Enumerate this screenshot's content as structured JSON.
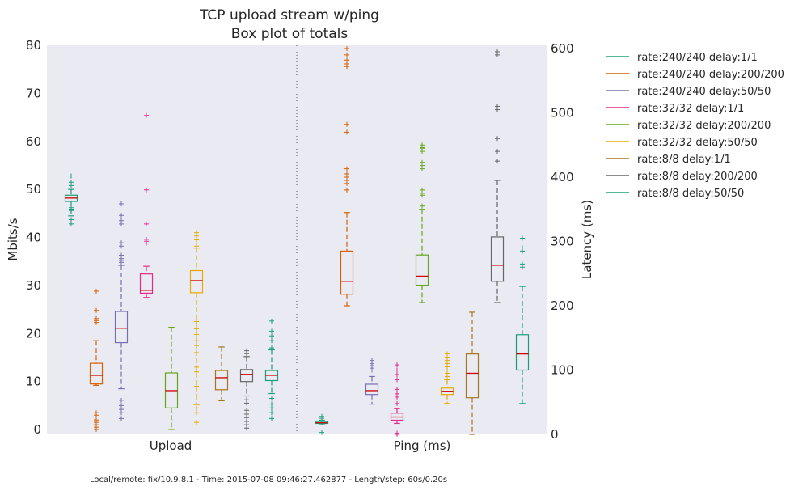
{
  "chart_data": {
    "type": "box",
    "title": "TCP upload stream w/ping",
    "subtitle": "Box plot of totals",
    "categories": [
      "Upload",
      "Ping (ms)"
    ],
    "y_left": {
      "label": "Mbits/s",
      "lim": [
        -1,
        80
      ],
      "ticks": [
        0,
        10,
        20,
        30,
        40,
        50,
        60,
        70,
        80
      ]
    },
    "y_right": {
      "label": "Latency (ms)",
      "lim": [
        0,
        605
      ],
      "ticks": [
        0,
        100,
        200,
        300,
        400,
        500,
        600
      ]
    },
    "grid": false,
    "legend_position": "right, outside",
    "series": [
      {
        "name": "rate:240/240 delay:1/1",
        "color": "#1b9e77",
        "upload": {
          "whislo": 44.5,
          "q1": 47.5,
          "med": 48.2,
          "q3": 48.8,
          "whishi": 50.0,
          "fliers": [
            42.8,
            43.7,
            45.6,
            45.9,
            46.2,
            50.8,
            51.5,
            52.8
          ]
        },
        "ping": {
          "whislo": 15,
          "q1": 17,
          "med": 18,
          "q3": 20,
          "whishi": 22,
          "fliers": [
            3,
            25,
            28
          ]
        }
      },
      {
        "name": "rate:240/240 delay:200/200",
        "color": "#d95f02",
        "upload": {
          "whislo": 9.2,
          "q1": 9.5,
          "med": 11.3,
          "q3": 13.8,
          "whishi": 18.5,
          "fliers": [
            0.0,
            0.5,
            1.0,
            1.5,
            2.0,
            3.0,
            3.5,
            22.3,
            22.7,
            23.1,
            24.8,
            28.8
          ]
        },
        "ping": {
          "whislo": 200,
          "q1": 218,
          "med": 238,
          "q3": 285,
          "whishi": 345,
          "fliers": [
            380,
            390,
            395,
            400,
            405,
            413,
            470,
            482,
            572,
            576,
            582,
            590,
            600
          ]
        }
      },
      {
        "name": "rate:240/240 delay:50/50",
        "color": "#7570b3",
        "upload": {
          "whislo": 8.5,
          "q1": 18.1,
          "med": 21.1,
          "q3": 24.6,
          "whishi": 34.2,
          "fliers": [
            2.3,
            3.5,
            4.2,
            5.0,
            6.1,
            34.8,
            35.2,
            35.6,
            36.3,
            38.2,
            38.9,
            42.8,
            43.5,
            44.6,
            47.0
          ]
        },
        "ping": {
          "whislo": 47,
          "q1": 62,
          "med": 68,
          "q3": 78,
          "whishi": 90,
          "fliers": [
            100,
            103,
            107,
            110,
            115
          ]
        }
      },
      {
        "name": "rate:32/32 delay:1/1",
        "color": "#e7298a",
        "upload": {
          "whislo": 27.5,
          "q1": 28.4,
          "med": 29.0,
          "q3": 32.4,
          "whishi": 34.0,
          "fliers": [
            38.8,
            39.2,
            39.6,
            42.8,
            49.9,
            65.4
          ]
        },
        "ping": {
          "whislo": 17,
          "q1": 22,
          "med": 27,
          "q3": 33,
          "whishi": 40,
          "fliers": [
            0,
            2,
            48,
            58,
            63,
            70,
            85,
            93,
            100,
            108
          ]
        }
      },
      {
        "name": "rate:32/32 delay:200/200",
        "color": "#66a61e",
        "upload": {
          "whislo": 0.0,
          "q1": 4.5,
          "med": 8.1,
          "q3": 11.8,
          "whishi": 21.3,
          "fliers": []
        },
        "ping": {
          "whislo": 205,
          "q1": 232,
          "med": 246,
          "q3": 279,
          "whishi": 350,
          "fliers": [
            355,
            372,
            375,
            380,
            413,
            418,
            423,
            440,
            445,
            446,
            450
          ]
        }
      },
      {
        "name": "rate:32/32 delay:50/50",
        "color": "#e6ab02",
        "upload": {
          "whislo": 5.2,
          "q1": 28.5,
          "med": 31.0,
          "q3": 33.1,
          "whishi": 37.8,
          "fliers": [
            1.5,
            3.5,
            4.5,
            7.0,
            9.0,
            12.0,
            13.0,
            16.0,
            17.5,
            18.5,
            19.8,
            21.0,
            22.5,
            38.2,
            39.5,
            40.3,
            41.0
          ]
        },
        "ping": {
          "whislo": 48,
          "q1": 62,
          "med": 67,
          "q3": 72,
          "whishi": 85,
          "fliers": [
            90,
            95,
            100,
            105,
            110,
            115,
            120,
            125
          ]
        }
      },
      {
        "name": "rate:8/8 delay:1/1",
        "color": "#a6761d",
        "upload": {
          "whislo": 6.0,
          "q1": 8.3,
          "med": 10.8,
          "q3": 12.3,
          "whishi": 17.2,
          "fliers": []
        },
        "ping": {
          "whislo": 0,
          "q1": 57,
          "med": 95,
          "q3": 125,
          "whishi": 190,
          "fliers": []
        }
      },
      {
        "name": "rate:8/8 delay:200/200",
        "color": "#666666",
        "upload": {
          "whislo": 7.0,
          "q1": 10.0,
          "med": 11.5,
          "q3": 12.5,
          "whishi": 15.2,
          "fliers": [
            0.3,
            1.0,
            1.7,
            2.5,
            3.2,
            4.0,
            5.5,
            6.2,
            15.8,
            16.4
          ]
        },
        "ping": {
          "whislo": 205,
          "q1": 238,
          "med": 263,
          "q3": 307,
          "whishi": 395,
          "fliers": [
            425,
            440,
            460,
            505,
            510,
            590,
            595
          ]
        }
      },
      {
        "name": "rate:8/8 delay:50/50",
        "color": "#1b9e77",
        "upload": {
          "whislo": 7.5,
          "q1": 10.2,
          "med": 11.3,
          "q3": 12.3,
          "whishi": 16.6,
          "fliers": [
            2.3,
            3.5,
            4.5,
            5.3,
            6.5,
            17.0,
            18.5,
            19.5,
            20.5,
            22.6
          ]
        },
        "ping": {
          "whislo": 48,
          "q1": 100,
          "med": 125,
          "q3": 155,
          "whishi": 230,
          "fliers": [
            260,
            265,
            285,
            290,
            305
          ]
        }
      }
    ]
  },
  "footer": "Local/remote: fix/10.9.8.1 - Time: 2015-07-08 09:46:27.462877 - Length/step: 60s/0.20s"
}
